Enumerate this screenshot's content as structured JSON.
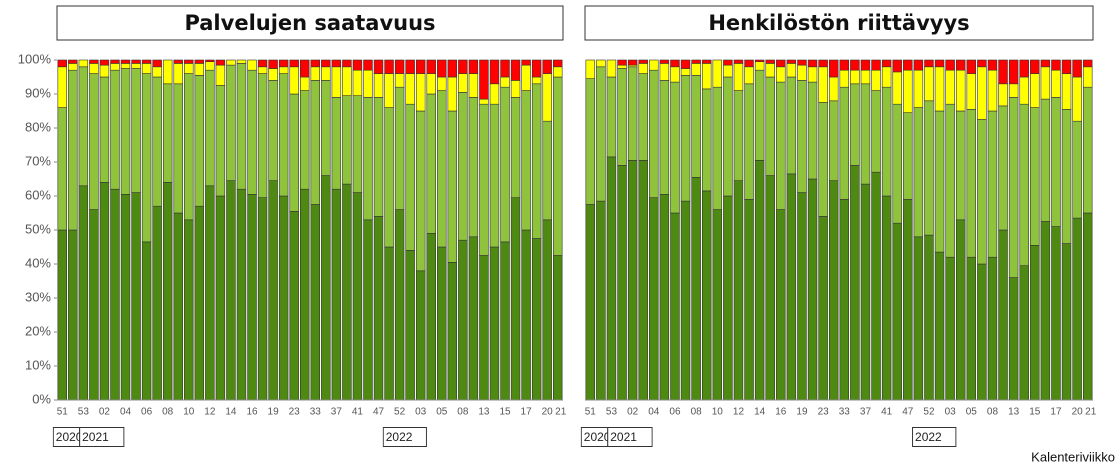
{
  "chart_data": [
    {
      "type": "stacked_bar",
      "title": "Palvelujen saatavuus",
      "categories": [
        "51",
        null,
        "53",
        null,
        "02",
        null,
        "04",
        null,
        "06",
        null,
        "08",
        null,
        "10",
        null,
        "12",
        null,
        "14",
        null,
        "16",
        null,
        "19",
        null,
        "23",
        null,
        "33",
        null,
        "37",
        null,
        "41",
        null,
        "47",
        null,
        "52",
        null,
        "03",
        null,
        "05",
        null,
        "08",
        null,
        "13",
        null,
        "15",
        null,
        "17",
        null,
        "20",
        "21"
      ],
      "year_labels": [
        "2020",
        "2021",
        "2022"
      ],
      "x_label": "Kalenteriviikko",
      "ylim": [
        0,
        100
      ],
      "yticks": [
        {
          "value": 0,
          "label": "0%"
        },
        {
          "value": 10,
          "label": "10%"
        },
        {
          "value": 20,
          "label": "20%"
        },
        {
          "value": 30,
          "label": "30%"
        },
        {
          "value": 40,
          "label": "40%"
        },
        {
          "value": 50,
          "label": "50%"
        },
        {
          "value": 60,
          "label": "60%"
        },
        {
          "value": 70,
          "label": "70%"
        },
        {
          "value": 80,
          "label": "80%"
        },
        {
          "value": 90,
          "label": "90%"
        },
        {
          "value": 100,
          "label": "100%"
        }
      ],
      "series": [
        {
          "color": "#4e8a12",
          "values": [
            50,
            50,
            63,
            56,
            64,
            62,
            60.5,
            61,
            46.5,
            57,
            64,
            55,
            53,
            57,
            63,
            60,
            64.5,
            62,
            60.5,
            59.5,
            64.5,
            60,
            55.5,
            62,
            57.5,
            66,
            62,
            63.5,
            61,
            53,
            54,
            45,
            56,
            44,
            38,
            49,
            45,
            40.5,
            47,
            48,
            42.5,
            45,
            46.5,
            59.5,
            50,
            47.5,
            53,
            42.5
          ]
        },
        {
          "color": "#8fc33c",
          "values": [
            36,
            47,
            35,
            40,
            31,
            35,
            37,
            36.5,
            49.5,
            38,
            29,
            38,
            43,
            38.5,
            34,
            32.5,
            34,
            37,
            36.5,
            36.5,
            29.5,
            36,
            34.5,
            29,
            36.5,
            28,
            27,
            26,
            28.5,
            36,
            35,
            41,
            36,
            43,
            47,
            41,
            46,
            44.5,
            43.5,
            41,
            44.5,
            42,
            45.5,
            29.5,
            41,
            45.5,
            29,
            52.5
          ]
        },
        {
          "color": "#ffff00",
          "values": [
            12,
            2,
            2,
            3,
            3.5,
            2,
            1.5,
            1.5,
            3,
            3,
            7,
            6,
            3,
            3.5,
            2.5,
            6,
            1.5,
            1,
            3,
            2,
            3.5,
            2,
            8,
            4,
            4,
            4,
            9,
            8.5,
            7.5,
            8,
            7,
            10,
            4,
            9,
            11,
            6,
            4,
            10,
            5.5,
            7,
            1.5,
            6,
            3,
            5,
            7.5,
            2,
            14,
            3
          ]
        },
        {
          "color": "#ff0000",
          "values": [
            2,
            1,
            0,
            1,
            1.5,
            1,
            1,
            1,
            1,
            2,
            0,
            1,
            1,
            1,
            0.5,
            1.5,
            0,
            0,
            0,
            2,
            2.5,
            2,
            2,
            5,
            2,
            2,
            2,
            2,
            3,
            3,
            4,
            4,
            4,
            4,
            4,
            4,
            5,
            5,
            4,
            4,
            11.5,
            7,
            5,
            6,
            1.5,
            5,
            4,
            2
          ]
        }
      ]
    },
    {
      "type": "stacked_bar",
      "title": "Henkilöstön riittävyys",
      "categories": [
        "51",
        null,
        "53",
        null,
        "02",
        null,
        "04",
        null,
        "06",
        null,
        "08",
        null,
        "10",
        null,
        "12",
        null,
        "14",
        null,
        "16",
        null,
        "19",
        null,
        "23",
        null,
        "33",
        null,
        "37",
        null,
        "41",
        null,
        "47",
        null,
        "52",
        null,
        "03",
        null,
        "05",
        null,
        "08",
        null,
        "13",
        null,
        "15",
        null,
        "17",
        null,
        "20",
        "21"
      ],
      "year_labels": [
        "2020",
        "2021",
        "2022"
      ],
      "ylim": [
        0,
        100
      ],
      "series": [
        {
          "color": "#4e8a12",
          "values": [
            57.5,
            58.5,
            71.5,
            69,
            70.5,
            70.5,
            59.5,
            60.5,
            55,
            58.5,
            65.5,
            61.5,
            56,
            60,
            64.5,
            59,
            70.5,
            66,
            56,
            66.5,
            61,
            65,
            54,
            64.5,
            59,
            69,
            63.5,
            67,
            60,
            52,
            59,
            48,
            48.5,
            43.5,
            42,
            53,
            42,
            40,
            42,
            50,
            36,
            39.5,
            45.5,
            52.5,
            51,
            46,
            53.5,
            55
          ]
        },
        {
          "color": "#8fc33c",
          "values": [
            37,
            39.5,
            23.5,
            28.5,
            27.5,
            25.5,
            37.5,
            33.5,
            38.5,
            37,
            30,
            30,
            36,
            35,
            26.5,
            34,
            26.5,
            29,
            37.5,
            28.5,
            33,
            28.5,
            33.5,
            23.5,
            33,
            24,
            29.5,
            24,
            32,
            35,
            25.5,
            38,
            39.5,
            41.5,
            45,
            32,
            43.5,
            42.5,
            43,
            36.5,
            53,
            47.5,
            40.5,
            36,
            38,
            39.5,
            28.5,
            37
          ]
        },
        {
          "color": "#ffff00",
          "values": [
            5.5,
            2,
            5,
            1,
            0.5,
            3,
            3,
            5,
            4.5,
            2,
            3.5,
            7.5,
            8,
            3.5,
            8,
            5,
            2.5,
            4,
            4.5,
            4,
            4.5,
            4.5,
            10.5,
            7,
            5,
            4,
            4,
            6,
            6,
            9.5,
            12.5,
            11,
            10,
            13,
            10,
            12,
            10.5,
            15.5,
            12,
            6.5,
            4,
            8,
            10,
            9.5,
            8,
            10.5,
            13,
            6
          ]
        },
        {
          "color": "#ff0000",
          "values": [
            0,
            0,
            0,
            1.5,
            1.5,
            1,
            0,
            1,
            2,
            2.5,
            1,
            1,
            0,
            1.5,
            1,
            2,
            0.5,
            1,
            2,
            1,
            1.5,
            2,
            2,
            5,
            3,
            3,
            3,
            3,
            2,
            3.5,
            3,
            3,
            2,
            2,
            3,
            3,
            4,
            2,
            3,
            7,
            7,
            5,
            4,
            2,
            3,
            4,
            5,
            2
          ]
        }
      ]
    }
  ]
}
